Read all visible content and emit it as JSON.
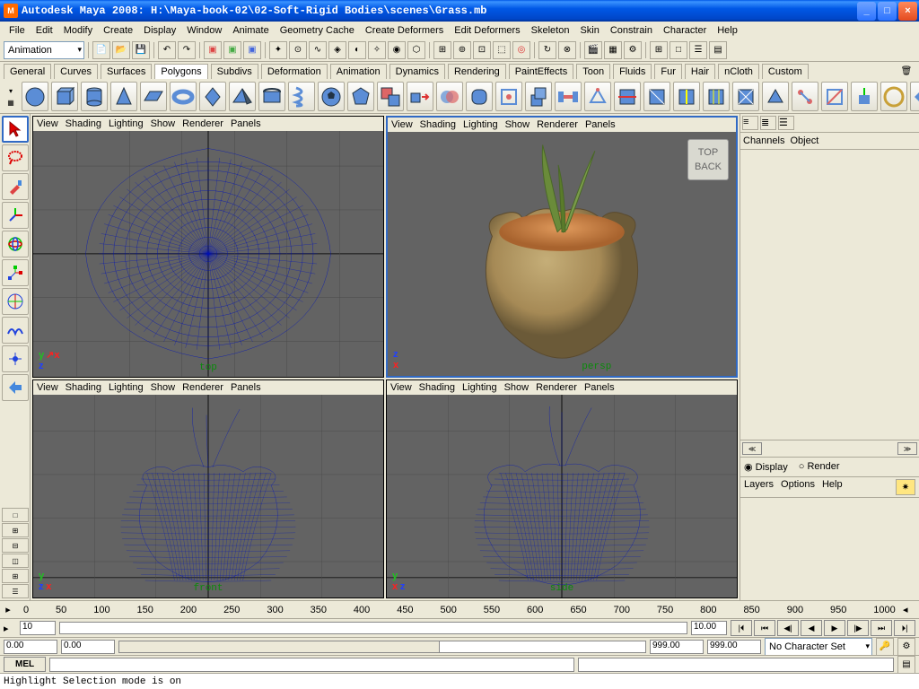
{
  "window": {
    "title": "Autodesk Maya 2008: H:\\Maya-book-02\\02-Soft-Rigid Bodies\\scenes\\Grass.mb",
    "icon_letter": "M"
  },
  "menubar": [
    "File",
    "Edit",
    "Modify",
    "Create",
    "Display",
    "Window",
    "Animate",
    "Geometry Cache",
    "Create Deformers",
    "Edit Deformers",
    "Skeleton",
    "Skin",
    "Constrain",
    "Character",
    "Help"
  ],
  "module_dropdown": "Animation",
  "shelf_tabs": [
    "General",
    "Curves",
    "Surfaces",
    "Polygons",
    "Subdivs",
    "Deformation",
    "Animation",
    "Dynamics",
    "Rendering",
    "PaintEffects",
    "Toon",
    "Fluids",
    "Fur",
    "Hair",
    "nCloth",
    "Custom"
  ],
  "shelf_active_tab": "Polygons",
  "viewport_menu": [
    "View",
    "Shading",
    "Lighting",
    "Show",
    "Renderer",
    "Panels"
  ],
  "viewports": {
    "top": {
      "label": "top",
      "bg": "#636363",
      "wire_color": "#0012b8",
      "grid_color": "#4a4a4a"
    },
    "persp": {
      "label": "persp",
      "bg": "#636363",
      "pot_color": "#a68a56",
      "soil_color": "#c8814a",
      "leaf_color": "#6a8b3a",
      "active": true,
      "viewcube": {
        "top": "TOP",
        "back": "BACK"
      }
    },
    "front": {
      "label": "front",
      "bg": "#636363",
      "wire_color": "#0012b8",
      "grid_color": "#4a4a4a"
    },
    "side": {
      "label": "side",
      "bg": "#636363",
      "wire_color": "#0012b8",
      "grid_color": "#4a4a4a"
    }
  },
  "channels": {
    "tab1": "Channels",
    "tab2": "Object"
  },
  "layers": {
    "radio_display": "Display",
    "radio_render": "Render",
    "menu": [
      "Layers",
      "Options",
      "Help"
    ]
  },
  "timeline": {
    "ticks": [
      0,
      50,
      100,
      150,
      200,
      250,
      300,
      350,
      400,
      450,
      500,
      550,
      600,
      650,
      700,
      750,
      800,
      850,
      900,
      950,
      1000
    ],
    "current_frame": "10",
    "range_start": "0.00",
    "range_end": "0.00",
    "anim_start": "999.00",
    "anim_end": "999.00",
    "current_field": "10.00",
    "charset": "No Character Set"
  },
  "cmdline": {
    "label": "MEL"
  },
  "status": "Highlight Selection mode is on",
  "colors": {
    "accent": "#316ac5",
    "wire": "#0012b8",
    "axis_x": "#ff2020",
    "axis_y": "#20c020",
    "axis_z": "#2040ff"
  }
}
